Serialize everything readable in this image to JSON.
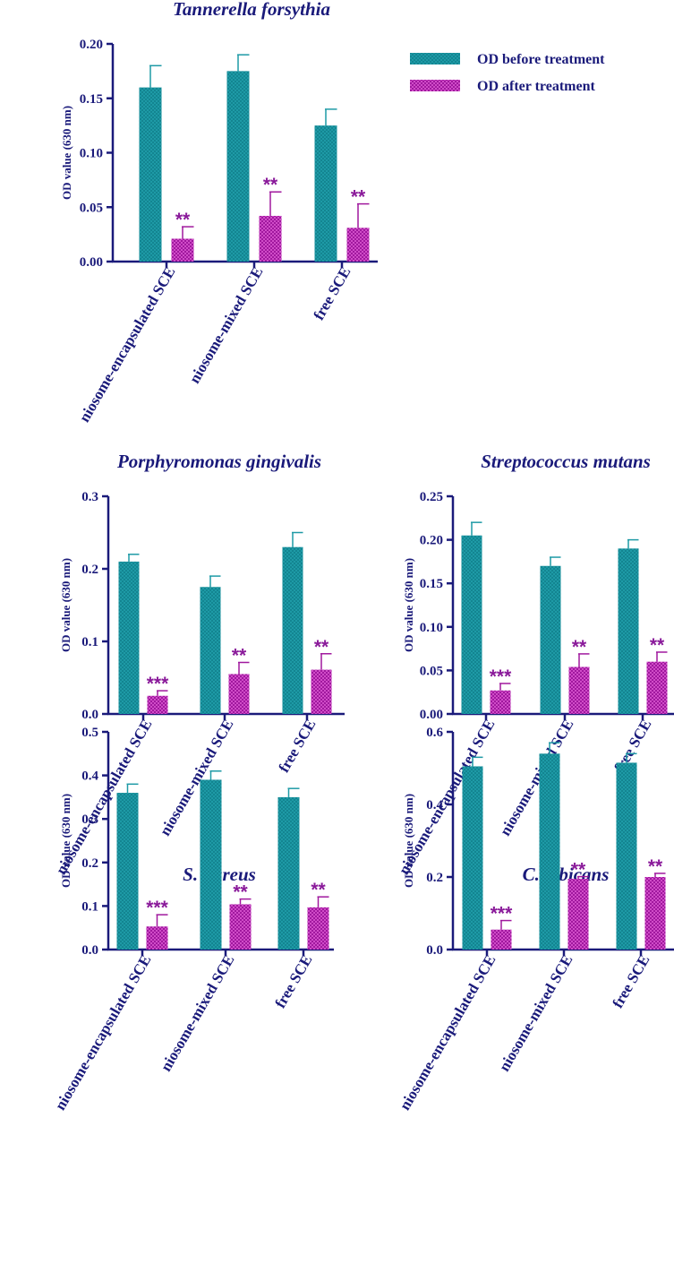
{
  "colors": {
    "before": "#1e9aa6",
    "after": "#a0189e",
    "axis": "#1a1a7a",
    "significance": "#8a1a9a"
  },
  "legend": {
    "items": [
      {
        "label": "OD before treatment",
        "series": "before"
      },
      {
        "label": "OD after treatment",
        "series": "after"
      }
    ],
    "placement": "top-right"
  },
  "chart_data": [
    {
      "type": "bar",
      "title": "Tannerella forsythia",
      "ylabel": "OD value (630 nm)",
      "xlabel": "",
      "categories": [
        "niosome-encapsulated SCE",
        "niosome-mixed SCE",
        "free SCE"
      ],
      "ylim": [
        0,
        0.2
      ],
      "yticks": [
        "0.00",
        "0.05",
        "0.10",
        "0.15",
        "0.20"
      ],
      "series": [
        {
          "name": "OD before treatment",
          "key": "before",
          "values": [
            0.16,
            0.175,
            0.125
          ],
          "errors": [
            0.02,
            0.015,
            0.015
          ],
          "significance": [
            "",
            "",
            ""
          ]
        },
        {
          "name": "OD after treatment",
          "key": "after",
          "values": [
            0.021,
            0.042,
            0.031
          ],
          "errors": [
            0.011,
            0.022,
            0.022
          ],
          "significance": [
            "**",
            "**",
            "**"
          ]
        }
      ]
    },
    {
      "type": "bar",
      "title": "Porphyromonas gingivalis",
      "ylabel": "OD value (630 nm)",
      "xlabel": "",
      "categories": [
        "niosome-encapsulated SCE",
        "niosome-mixed SCE",
        "free SCE"
      ],
      "ylim": [
        0,
        0.3
      ],
      "yticks": [
        "0.0",
        "0.1",
        "0.2",
        "0.3"
      ],
      "series": [
        {
          "name": "OD before treatment",
          "key": "before",
          "values": [
            0.21,
            0.175,
            0.23
          ],
          "errors": [
            0.01,
            0.015,
            0.02
          ],
          "significance": [
            "",
            "",
            ""
          ]
        },
        {
          "name": "OD after treatment",
          "key": "after",
          "values": [
            0.025,
            0.055,
            0.061
          ],
          "errors": [
            0.007,
            0.016,
            0.022
          ],
          "significance": [
            "***",
            "**",
            "**"
          ]
        }
      ]
    },
    {
      "type": "bar",
      "title": "Streptococcus mutans",
      "ylabel": "OD value (630 nm)",
      "xlabel": "",
      "categories": [
        "niosome-encapsulated SCE",
        "niosome-mixed SCE",
        "free SCE"
      ],
      "ylim": [
        0,
        0.25
      ],
      "yticks": [
        "0.00",
        "0.05",
        "0.10",
        "0.15",
        "0.20",
        "0.25"
      ],
      "series": [
        {
          "name": "OD before treatment",
          "key": "before",
          "values": [
            0.205,
            0.17,
            0.19
          ],
          "errors": [
            0.015,
            0.01,
            0.01
          ],
          "significance": [
            "",
            "",
            ""
          ]
        },
        {
          "name": "OD after treatment",
          "key": "after",
          "values": [
            0.027,
            0.054,
            0.06
          ],
          "errors": [
            0.008,
            0.015,
            0.011
          ],
          "significance": [
            "***",
            "**",
            "**"
          ]
        }
      ]
    },
    {
      "type": "bar",
      "title": "S. aureus",
      "ylabel": "OD value (630 nm)",
      "xlabel": "",
      "categories": [
        "niosome-encapsulated SCE",
        "niosome-mixed SCE",
        "free SCE"
      ],
      "ylim": [
        0,
        0.5
      ],
      "yticks": [
        "0.0",
        "0.1",
        "0.2",
        "0.3",
        "0.4",
        "0.5"
      ],
      "series": [
        {
          "name": "OD before treatment",
          "key": "before",
          "values": [
            0.36,
            0.39,
            0.35
          ],
          "errors": [
            0.02,
            0.02,
            0.02
          ],
          "significance": [
            "",
            "",
            ""
          ]
        },
        {
          "name": "OD after treatment",
          "key": "after",
          "values": [
            0.053,
            0.104,
            0.097
          ],
          "errors": [
            0.027,
            0.012,
            0.024
          ],
          "significance": [
            "***",
            "**",
            "**"
          ]
        }
      ]
    },
    {
      "type": "bar",
      "title": "C. albicans",
      "ylabel": "OD value (630 nm)",
      "xlabel": "",
      "categories": [
        "niosome-encapsulated SCE",
        "niosome-mixed SCE",
        "free SCE"
      ],
      "ylim": [
        0,
        0.6
      ],
      "yticks": [
        "0.0",
        "0.2",
        "0.4",
        "0.6"
      ],
      "series": [
        {
          "name": "OD before treatment",
          "key": "before",
          "values": [
            0.505,
            0.54,
            0.515
          ],
          "errors": [
            0.025,
            0.03,
            0.025
          ],
          "significance": [
            "",
            "",
            ""
          ]
        },
        {
          "name": "OD after treatment",
          "key": "after",
          "values": [
            0.055,
            0.195,
            0.2
          ],
          "errors": [
            0.025,
            0.006,
            0.01
          ],
          "significance": [
            "***",
            "**",
            "**"
          ]
        }
      ]
    }
  ]
}
